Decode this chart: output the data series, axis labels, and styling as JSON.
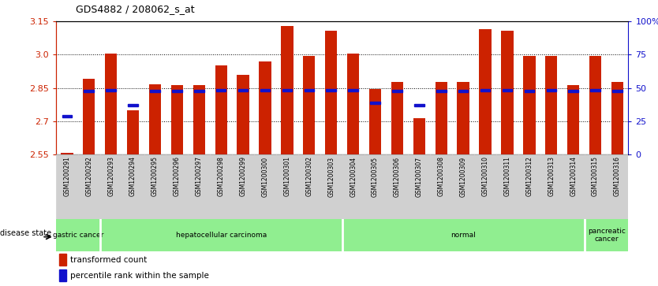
{
  "title": "GDS4882 / 208062_s_at",
  "samples": [
    "GSM1200291",
    "GSM1200292",
    "GSM1200293",
    "GSM1200294",
    "GSM1200295",
    "GSM1200296",
    "GSM1200297",
    "GSM1200298",
    "GSM1200299",
    "GSM1200300",
    "GSM1200301",
    "GSM1200302",
    "GSM1200303",
    "GSM1200304",
    "GSM1200305",
    "GSM1200306",
    "GSM1200307",
    "GSM1200308",
    "GSM1200309",
    "GSM1200310",
    "GSM1200311",
    "GSM1200312",
    "GSM1200313",
    "GSM1200314",
    "GSM1200315",
    "GSM1200316"
  ],
  "bar_values": [
    2.558,
    2.893,
    3.005,
    2.748,
    2.868,
    2.862,
    2.862,
    2.952,
    2.91,
    2.968,
    3.128,
    2.993,
    3.108,
    3.005,
    2.845,
    2.877,
    2.715,
    2.877,
    2.877,
    3.115,
    3.108,
    2.993,
    2.993,
    2.862,
    2.993,
    2.877
  ],
  "blue_values": [
    2.722,
    2.837,
    2.84,
    2.773,
    2.837,
    2.837,
    2.837,
    2.84,
    2.84,
    2.84,
    2.84,
    2.84,
    2.84,
    2.84,
    2.782,
    2.837,
    2.773,
    2.837,
    2.837,
    2.84,
    2.84,
    2.837,
    2.84,
    2.837,
    2.84,
    2.837
  ],
  "ymin": 2.55,
  "ymax": 3.15,
  "yticks_left": [
    2.55,
    2.7,
    2.85,
    3.0,
    3.15
  ],
  "yticks_right_pct": [
    0,
    25,
    50,
    75,
    100
  ],
  "right_yticklabels": [
    "0",
    "25",
    "50",
    "75",
    "100%"
  ],
  "bar_color": "#cc2200",
  "blue_color": "#1111cc",
  "cell_bg": "#d0d0d0",
  "green_color": "#90ee90",
  "disease_groups": [
    {
      "label": "gastric cancer",
      "start": 0,
      "end": 2
    },
    {
      "label": "hepatocellular carcinoma",
      "start": 2,
      "end": 13
    },
    {
      "label": "normal",
      "start": 13,
      "end": 24
    },
    {
      "label": "pancreatic\ncancer",
      "start": 24,
      "end": 26
    }
  ],
  "grid_lines": [
    2.7,
    2.85,
    3.0
  ]
}
